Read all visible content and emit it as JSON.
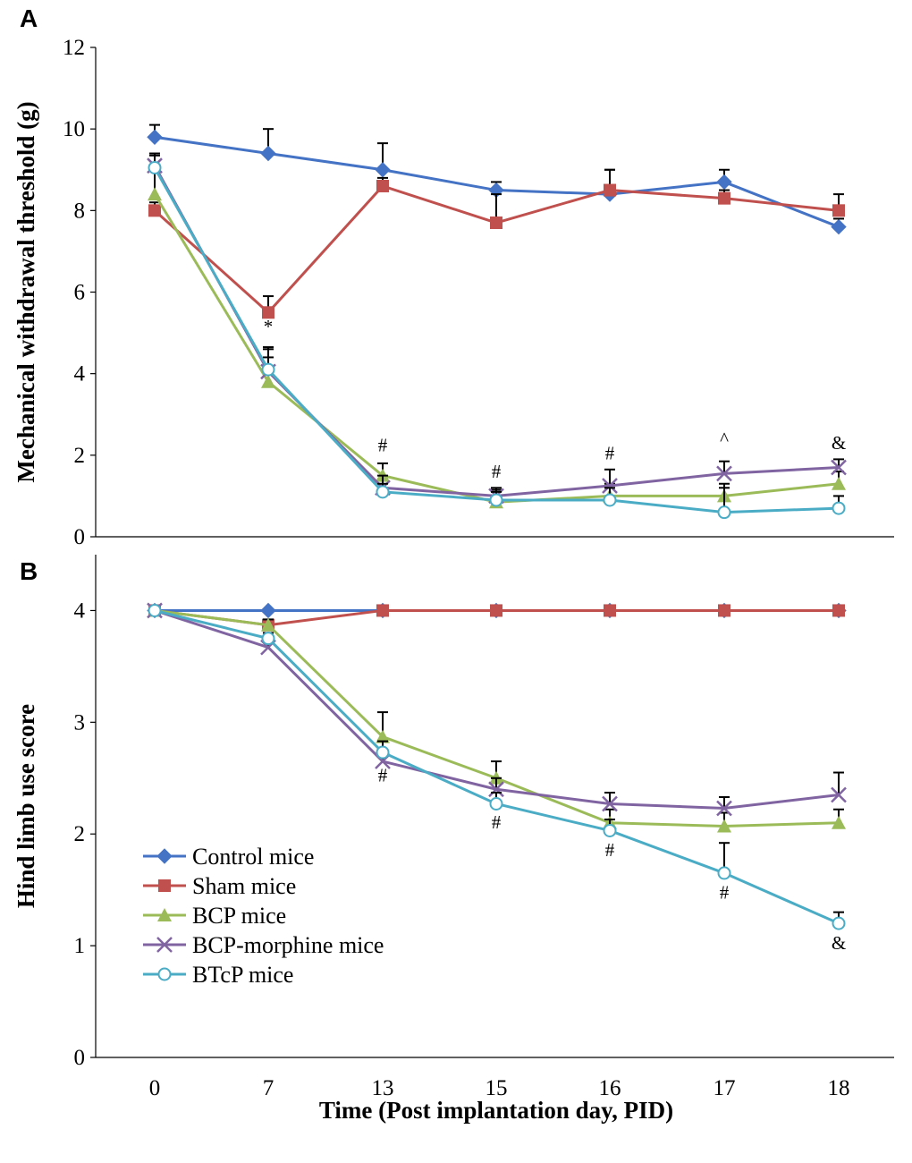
{
  "figure": {
    "x_title": "Time (Post implantation day, PID)",
    "x_labels": [
      "0",
      "7",
      "13",
      "15",
      "16",
      "17",
      "18"
    ]
  },
  "colors": {
    "Control mice": "#4472C4",
    "Sham mice": "#C0504D",
    "BCP mice": "#9BBB59",
    "BCP-morphine mice": "#8064A2",
    "BTcP mice": "#4BACC6"
  },
  "legend": {
    "items": [
      "Control mice",
      "Sham mice",
      "BCP mice",
      "BCP-morphine mice",
      "BTcP mice"
    ],
    "markers": [
      "diamond",
      "square",
      "triangle",
      "x",
      "circle"
    ]
  },
  "chart_data": [
    {
      "panel": "A",
      "type": "line",
      "ylabel": "Mechanical withdrawal threshold (g)",
      "ylim": [
        0,
        12
      ],
      "yticks": [
        0,
        2,
        4,
        6,
        8,
        10,
        12
      ],
      "categories": [
        "0",
        "7",
        "13",
        "15",
        "16",
        "17",
        "18"
      ],
      "series": [
        {
          "name": "Control mice",
          "marker": "diamond",
          "values": [
            9.8,
            9.4,
            9.0,
            8.5,
            8.4,
            8.7,
            7.6
          ],
          "errors": [
            0.3,
            0.6,
            0.65,
            0.2,
            0.6,
            0.3,
            0.2
          ]
        },
        {
          "name": "Sham mice",
          "marker": "square",
          "values": [
            8.0,
            5.5,
            8.6,
            7.7,
            8.5,
            8.3,
            8.0
          ],
          "errors": [
            0.2,
            0.4,
            0.2,
            0.7,
            0.5,
            0.2,
            0.4
          ]
        },
        {
          "name": "BCP mice",
          "marker": "triangle",
          "values": [
            8.4,
            3.8,
            1.5,
            0.85,
            1.0,
            1.0,
            1.3
          ],
          "errors": [
            0.6,
            0.6,
            0.3,
            0.3,
            0.3,
            0.3,
            0.3
          ]
        },
        {
          "name": "BCP-morphine mice",
          "marker": "x",
          "values": [
            9.1,
            4.05,
            1.2,
            1.0,
            1.25,
            1.55,
            1.7
          ],
          "errors": [
            0.3,
            0.6,
            0.3,
            0.2,
            0.4,
            0.3,
            0.2
          ]
        },
        {
          "name": "BTcP mice",
          "marker": "circle",
          "values": [
            9.05,
            4.1,
            1.1,
            0.9,
            0.9,
            0.6,
            0.7
          ],
          "errors": [
            0.3,
            0.5,
            0.2,
            0.2,
            0.3,
            0.6,
            0.3
          ]
        }
      ],
      "annotations": [
        {
          "x": "7",
          "y": 5.0,
          "text": "*"
        },
        {
          "x": "13",
          "y": 2.1,
          "text": "#"
        },
        {
          "x": "15",
          "y": 1.45,
          "text": "#"
        },
        {
          "x": "16",
          "y": 1.9,
          "text": "#"
        },
        {
          "x": "17",
          "y": 2.25,
          "text": "^"
        },
        {
          "x": "18",
          "y": 2.15,
          "text": "&"
        }
      ]
    },
    {
      "panel": "B",
      "type": "line",
      "ylabel": "Hind limb use score",
      "ylim": [
        0,
        4.5
      ],
      "yticks": [
        0,
        1,
        2,
        3,
        4
      ],
      "categories": [
        "0",
        "7",
        "13",
        "15",
        "16",
        "17",
        "18"
      ],
      "series": [
        {
          "name": "Control mice",
          "marker": "diamond",
          "values": [
            4.0,
            4.0,
            4.0,
            4.0,
            4.0,
            4.0,
            4.0
          ],
          "errors": [
            0,
            0,
            0,
            0,
            0,
            0,
            0
          ]
        },
        {
          "name": "Sham mice",
          "marker": "square",
          "values": [
            4.0,
            3.87,
            4.0,
            4.0,
            4.0,
            4.0,
            4.0
          ],
          "errors": [
            0,
            0.05,
            0,
            0,
            0,
            0,
            0
          ]
        },
        {
          "name": "BCP mice",
          "marker": "triangle",
          "values": [
            4.0,
            3.87,
            2.87,
            2.5,
            2.1,
            2.07,
            2.1
          ],
          "errors": [
            0,
            0.05,
            0.22,
            0.15,
            0.12,
            0.12,
            0.12
          ]
        },
        {
          "name": "BCP-morphine mice",
          "marker": "x",
          "values": [
            4.0,
            3.67,
            2.65,
            2.4,
            2.27,
            2.23,
            2.35
          ],
          "errors": [
            0,
            0.05,
            0.1,
            0.1,
            0.1,
            0.1,
            0.2
          ]
        },
        {
          "name": "BTcP mice",
          "marker": "circle",
          "values": [
            4.0,
            3.75,
            2.73,
            2.27,
            2.03,
            1.65,
            1.2
          ],
          "errors": [
            0,
            0.05,
            0.1,
            0.1,
            0.1,
            0.27,
            0.1
          ]
        }
      ],
      "annotations": [
        {
          "x": "13",
          "y": 2.47,
          "text": "#"
        },
        {
          "x": "15",
          "y": 2.05,
          "text": "#"
        },
        {
          "x": "16",
          "y": 1.8,
          "text": "#"
        },
        {
          "x": "17",
          "y": 1.42,
          "text": "#"
        },
        {
          "x": "18",
          "y": 0.97,
          "text": "&"
        }
      ]
    }
  ]
}
